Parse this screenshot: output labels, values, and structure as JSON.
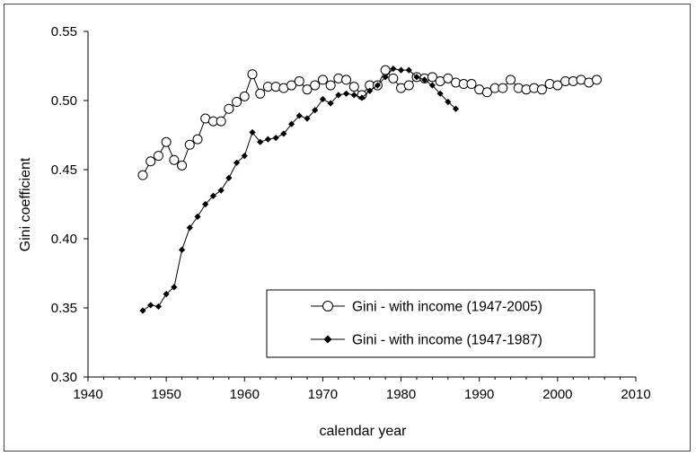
{
  "chart_data": {
    "type": "line",
    "title": "",
    "xlabel": "calendar year",
    "ylabel": "Gini coefficient",
    "xlim": [
      1940,
      2010
    ],
    "ylim": [
      0.3,
      0.55
    ],
    "xticks": [
      1940,
      1950,
      1960,
      1970,
      1980,
      1990,
      2000,
      2010
    ],
    "yticks": [
      0.3,
      0.35,
      0.4,
      0.45,
      0.5,
      0.55
    ],
    "xtick_labels": [
      "1940",
      "1950",
      "1960",
      "1970",
      "1980",
      "1990",
      "2000",
      "2010"
    ],
    "ytick_labels": [
      "0.30",
      "0.35",
      "0.40",
      "0.45",
      "0.50",
      "0.55"
    ],
    "grid": false,
    "legend_position": "lower-right",
    "series": [
      {
        "name": "Gini - with income (1947-2005)",
        "marker": "open-circle",
        "color": "#000000",
        "x": [
          1947,
          1948,
          1949,
          1950,
          1951,
          1952,
          1953,
          1954,
          1955,
          1956,
          1957,
          1958,
          1959,
          1960,
          1961,
          1962,
          1963,
          1964,
          1965,
          1966,
          1967,
          1968,
          1969,
          1970,
          1971,
          1972,
          1973,
          1974,
          1975,
          1976,
          1977,
          1978,
          1979,
          1980,
          1981,
          1982,
          1983,
          1984,
          1985,
          1986,
          1987,
          1988,
          1989,
          1990,
          1991,
          1992,
          1993,
          1994,
          1995,
          1996,
          1997,
          1998,
          1999,
          2000,
          2001,
          2002,
          2003,
          2004,
          2005
        ],
        "values": [
          0.446,
          0.456,
          0.46,
          0.47,
          0.457,
          0.453,
          0.468,
          0.472,
          0.487,
          0.485,
          0.485,
          0.494,
          0.499,
          0.503,
          0.519,
          0.505,
          0.51,
          0.51,
          0.509,
          0.511,
          0.514,
          0.508,
          0.511,
          0.515,
          0.511,
          0.516,
          0.515,
          0.51,
          0.504,
          0.511,
          0.511,
          0.522,
          0.516,
          0.509,
          0.511,
          0.517,
          0.516,
          0.517,
          0.514,
          0.516,
          0.513,
          0.512,
          0.512,
          0.508,
          0.506,
          0.509,
          0.509,
          0.515,
          0.509,
          0.508,
          0.509,
          0.508,
          0.512,
          0.511,
          0.514,
          0.514,
          0.515,
          0.513,
          0.515
        ]
      },
      {
        "name": "Gini - with income (1947-1987)",
        "marker": "filled-diamond",
        "color": "#000000",
        "x": [
          1947,
          1948,
          1949,
          1950,
          1951,
          1952,
          1953,
          1954,
          1955,
          1956,
          1957,
          1958,
          1959,
          1960,
          1961,
          1962,
          1963,
          1964,
          1965,
          1966,
          1967,
          1968,
          1969,
          1970,
          1971,
          1972,
          1973,
          1974,
          1975,
          1976,
          1977,
          1978,
          1979,
          1980,
          1981,
          1982,
          1983,
          1984,
          1985,
          1986,
          1987
        ],
        "values": [
          0.348,
          0.352,
          0.351,
          0.36,
          0.365,
          0.392,
          0.408,
          0.416,
          0.425,
          0.431,
          0.435,
          0.444,
          0.455,
          0.46,
          0.477,
          0.47,
          0.472,
          0.473,
          0.476,
          0.483,
          0.489,
          0.487,
          0.493,
          0.501,
          0.498,
          0.504,
          0.505,
          0.504,
          0.502,
          0.507,
          0.511,
          0.517,
          0.523,
          0.522,
          0.522,
          0.517,
          0.515,
          0.511,
          0.505,
          0.499,
          0.494
        ]
      }
    ]
  }
}
